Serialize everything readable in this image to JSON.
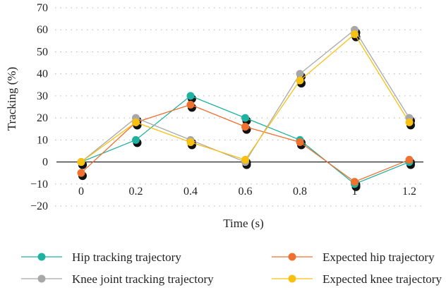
{
  "chart_data": {
    "type": "line",
    "title": "",
    "xlabel": "Time (s)",
    "ylabel": "Tracking (%)",
    "x": [
      0,
      0.2,
      0.4,
      0.6,
      0.8,
      1,
      1.2
    ],
    "x_tick_labels": [
      "0",
      "0.2",
      "0.4",
      "0.6",
      "0.8",
      "1",
      "1.2"
    ],
    "ylim": [
      -20,
      70
    ],
    "y_ticks": [
      -20,
      -10,
      0,
      10,
      20,
      30,
      40,
      50,
      60,
      70
    ],
    "y_tick_labels": [
      "−20",
      "−10",
      "0",
      "10",
      "20",
      "30",
      "40",
      "50",
      "60",
      "70"
    ],
    "grid": "dotted horizontal",
    "legend_position": "bottom",
    "series": [
      {
        "name": "Hip tracking trajectory",
        "color": "#20b2a0",
        "values": [
          0,
          10,
          30,
          20,
          10,
          -10,
          0
        ]
      },
      {
        "name": "Expected hip trajectory",
        "color": "#f07030",
        "values": [
          -5,
          18,
          26,
          16,
          9,
          -9,
          1
        ]
      },
      {
        "name": "Knee joint tracking trajectory",
        "color": "#a8a8a8",
        "values": [
          0,
          20,
          10,
          0,
          40,
          60,
          20
        ]
      },
      {
        "name": "Expected knee trajectory",
        "color": "#f8c010",
        "values": [
          0,
          18,
          9,
          1,
          37,
          58,
          18
        ]
      }
    ]
  }
}
